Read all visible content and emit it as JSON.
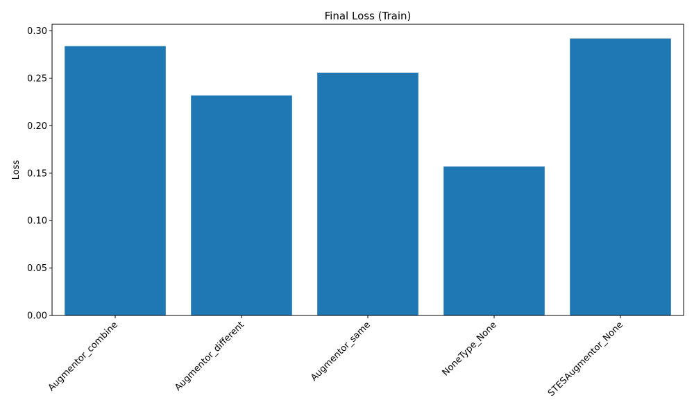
{
  "chart_data": {
    "type": "bar",
    "title": "Final Loss (Train)",
    "xlabel": "",
    "ylabel": "Loss",
    "categories": [
      "Augmentor_combine",
      "Augmentor_different",
      "Augmentor_same",
      "NoneType_None",
      "STESAugmentor_None"
    ],
    "values": [
      0.284,
      0.232,
      0.256,
      0.157,
      0.292
    ],
    "ylim": [
      0,
      0.307
    ],
    "yticks": [
      "0.00",
      "0.05",
      "0.10",
      "0.15",
      "0.20",
      "0.25",
      "0.30"
    ],
    "bar_color": "#1f77b4",
    "grid": false,
    "legend": "none"
  }
}
